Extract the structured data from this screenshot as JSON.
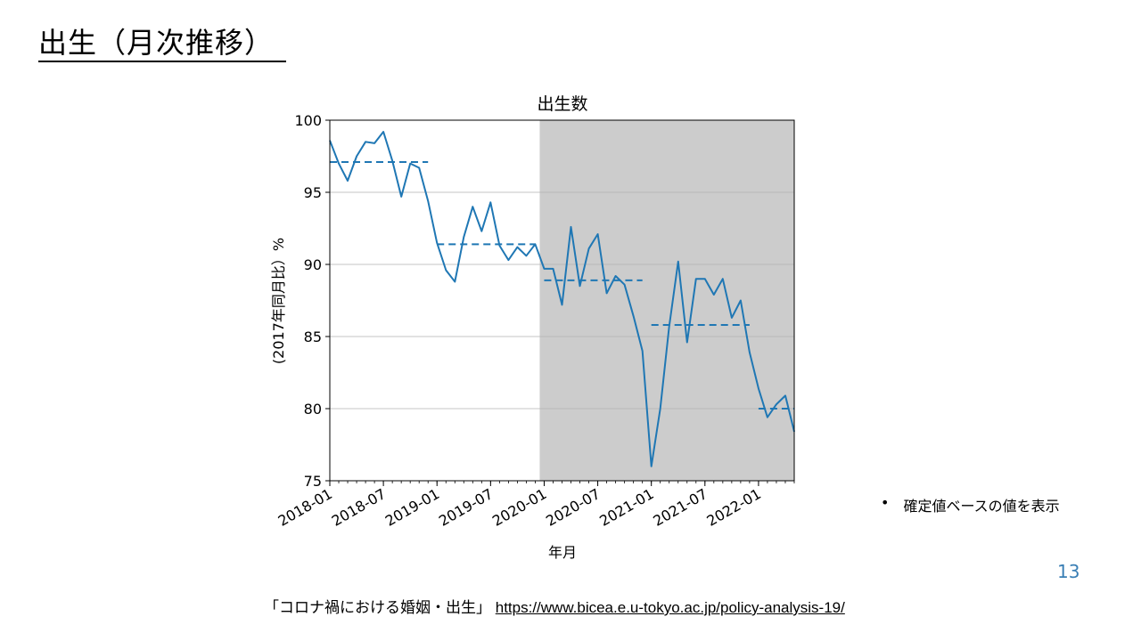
{
  "slide": {
    "title": "出生（月次推移）",
    "note_bullet": "•",
    "note": "確定値ベースの値を表示",
    "page_number": "13",
    "source_text": "「コロナ禍における婚姻・出生」",
    "source_url": "https://www.bicea.e.u-tokyo.ac.jp/policy-analysis-19/"
  },
  "chart_data": {
    "type": "line",
    "title": "出生数",
    "xlabel": "年月",
    "ylabel": "(2017年同月比）%",
    "ylim": [
      75,
      100
    ],
    "yticks": [
      75,
      80,
      85,
      90,
      95,
      100
    ],
    "xlim": [
      "2018-01",
      "2022-05"
    ],
    "xticks": [
      "2018-01",
      "2018-07",
      "2019-01",
      "2019-07",
      "2020-01",
      "2020-07",
      "2021-01",
      "2021-07",
      "2022-01"
    ],
    "grid": "horizontal",
    "shaded_period": {
      "start": "2020-02",
      "end": "2022-05",
      "color": "#cccccc"
    },
    "line_color": "#1f77b4",
    "series": [
      {
        "x": [
          "2018-01",
          "2018-02",
          "2018-03",
          "2018-04",
          "2018-05",
          "2018-06",
          "2018-07",
          "2018-08",
          "2018-09",
          "2018-10",
          "2018-11",
          "2018-12",
          "2019-01",
          "2019-02",
          "2019-03",
          "2019-04",
          "2019-05",
          "2019-06",
          "2019-07",
          "2019-08",
          "2019-09",
          "2019-10",
          "2019-11",
          "2019-12",
          "2020-01",
          "2020-02",
          "2020-03",
          "2020-04",
          "2020-05",
          "2020-06",
          "2020-07",
          "2020-08",
          "2020-09",
          "2020-10",
          "2020-11",
          "2020-12",
          "2021-01",
          "2021-02",
          "2021-03",
          "2021-04",
          "2021-05",
          "2021-06",
          "2021-07",
          "2021-08",
          "2021-09",
          "2021-10",
          "2021-11",
          "2021-12",
          "2022-01",
          "2022-02",
          "2022-03",
          "2022-04",
          "2022-05"
        ],
        "values": [
          98.6,
          97.0,
          95.8,
          97.5,
          98.5,
          98.4,
          99.2,
          97.2,
          94.7,
          97.0,
          96.7,
          94.4,
          91.5,
          89.6,
          88.8,
          91.9,
          94.0,
          92.3,
          94.3,
          91.3,
          90.3,
          91.2,
          90.6,
          91.4,
          89.7,
          89.7,
          87.2,
          92.6,
          88.5,
          91.1,
          92.1,
          88.0,
          89.2,
          88.6,
          86.4,
          84.0,
          76.0,
          80.0,
          85.7,
          90.2,
          84.6,
          89.0,
          89.0,
          87.9,
          89.0,
          86.3,
          87.5,
          83.9,
          81.4,
          79.4,
          80.3,
          80.9,
          78.4
        ]
      }
    ],
    "annual_averages": [
      {
        "start": "2018-01",
        "end": "2018-12",
        "value": 97.1
      },
      {
        "start": "2019-01",
        "end": "2019-12",
        "value": 91.4
      },
      {
        "start": "2020-01",
        "end": "2020-12",
        "value": 88.9
      },
      {
        "start": "2021-01",
        "end": "2021-12",
        "value": 85.8
      },
      {
        "start": "2022-01",
        "end": "2022-05",
        "value": 80.0
      }
    ]
  }
}
